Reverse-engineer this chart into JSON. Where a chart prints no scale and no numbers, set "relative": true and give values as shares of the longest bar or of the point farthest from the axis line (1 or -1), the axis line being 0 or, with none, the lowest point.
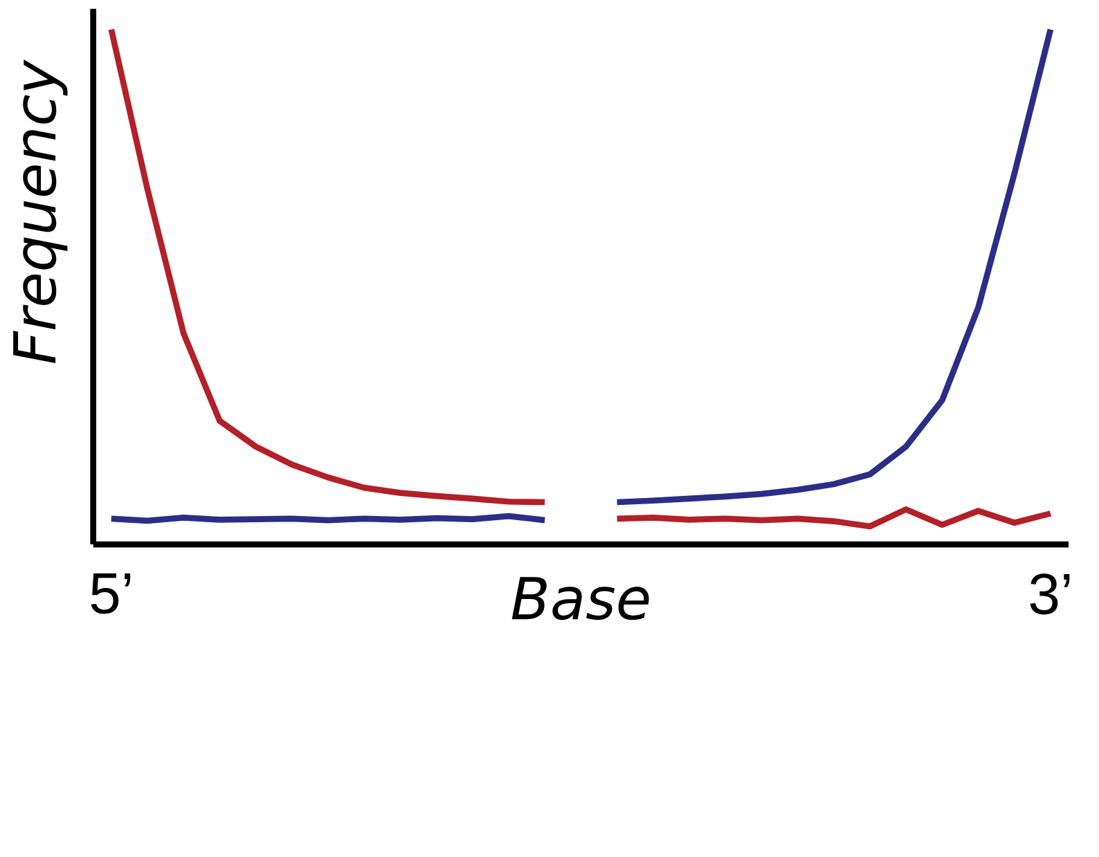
{
  "chart_data": {
    "type": "line",
    "relative": true,
    "xlabel": "Base",
    "ylabel": "Frequency",
    "categories": [
      "5’",
      null,
      null,
      null,
      null,
      null,
      null,
      null,
      null,
      null,
      null,
      null,
      null,
      null,
      null,
      null,
      null,
      null,
      null,
      null,
      null,
      null,
      null,
      null,
      null,
      null,
      "3’"
    ],
    "series": [
      {
        "color": "#b22028",
        "values": [
          1.0,
          0.69,
          0.41,
          0.24,
          0.19,
          0.155,
          0.13,
          0.11,
          0.1,
          0.094,
          0.089,
          0.083,
          0.082,
          null,
          0.05,
          0.052,
          0.048,
          0.05,
          0.047,
          0.05,
          0.045,
          0.035,
          0.068,
          0.038,
          0.065,
          0.042,
          0.06
        ]
      },
      {
        "color": "#2b2e86",
        "values": [
          0.05,
          0.046,
          0.052,
          0.048,
          0.049,
          0.05,
          0.047,
          0.05,
          0.048,
          0.051,
          0.049,
          0.055,
          0.047,
          null,
          0.082,
          0.085,
          0.089,
          0.093,
          0.098,
          0.106,
          0.117,
          0.136,
          0.19,
          0.28,
          0.46,
          0.72,
          1.0
        ]
      }
    ]
  }
}
